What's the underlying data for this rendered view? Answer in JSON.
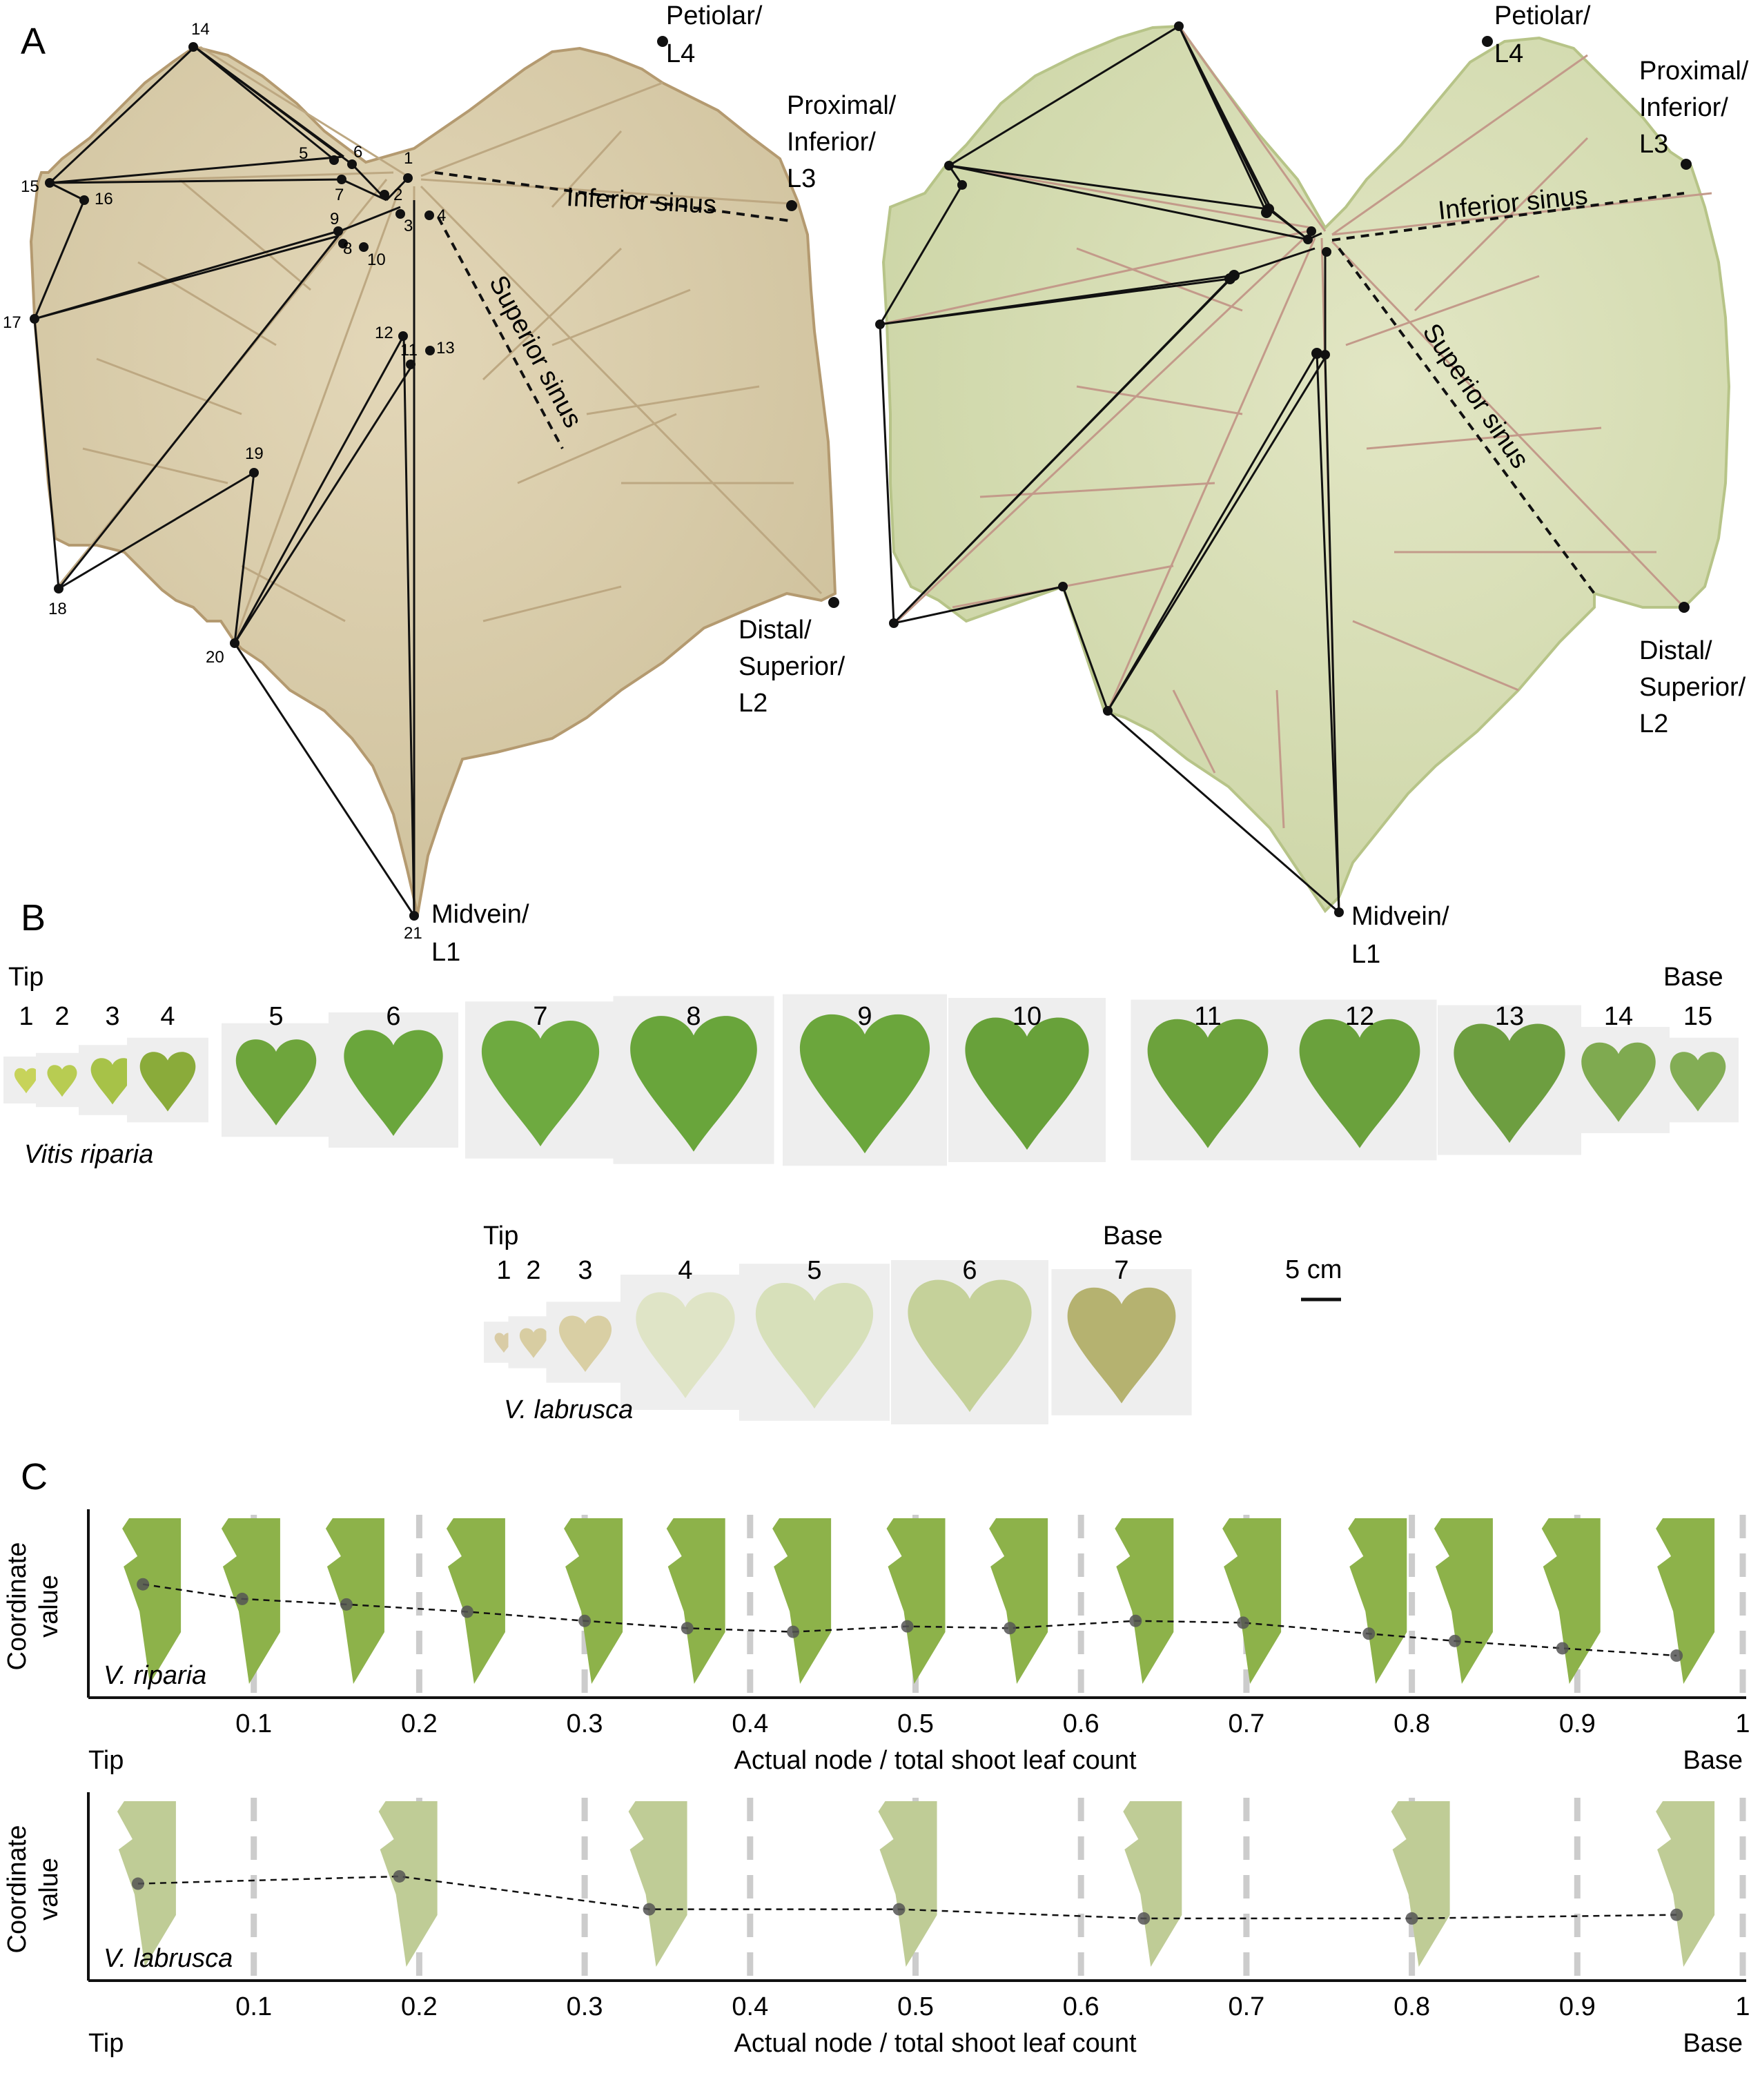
{
  "panel_a": {
    "letter": "A",
    "left_leaf": {
      "landmark_numbers": [
        "1",
        "2",
        "3",
        "4",
        "5",
        "6",
        "7",
        "8",
        "9",
        "10",
        "11",
        "12",
        "13",
        "14",
        "15",
        "16",
        "17",
        "18",
        "19",
        "20",
        "21"
      ],
      "vein_labels": {
        "petiolar": [
          "Petiolar/",
          "L4"
        ],
        "proximal": [
          "Proximal/",
          "Inferior/",
          "L3"
        ],
        "distal": [
          "Distal/",
          "Superior/",
          "L2"
        ],
        "midvein": [
          "Midvein/",
          "L1"
        ]
      },
      "inferior_sinus": "Inferior sinus",
      "superior_sinus": "Superior sinus"
    },
    "right_leaf": {
      "vein_labels": {
        "petiolar": [
          "Petiolar/",
          "L4"
        ],
        "proximal": [
          "Proximal/",
          "Inferior/",
          "L3"
        ],
        "distal": [
          "Distal/",
          "Superior/",
          "L2"
        ],
        "midvein": [
          "Midvein/",
          "L1"
        ]
      },
      "inferior_sinus": "Inferior sinus",
      "superior_sinus": "Superior sinus"
    }
  },
  "panel_b": {
    "letter": "B",
    "riparia": {
      "tip_label": "Tip",
      "base_label": "Base",
      "species": "Vitis riparia",
      "nodes": [
        "1",
        "2",
        "3",
        "4",
        "5",
        "6",
        "7",
        "8",
        "9",
        "10",
        "11",
        "12",
        "13",
        "14",
        "15"
      ]
    },
    "labrusca": {
      "tip_label": "Tip",
      "base_label": "Base",
      "species": "V. labrusca",
      "nodes": [
        "1",
        "2",
        "3",
        "4",
        "5",
        "6",
        "7"
      ]
    },
    "scale_bar": "5 cm"
  },
  "panel_c": {
    "letter": "C",
    "colors": {
      "riparia": "#8db24a",
      "labrusca": "#bfcc96",
      "dashed_grid": "#cccccc",
      "point": "#555555"
    },
    "chart_data": [
      {
        "type": "scatter",
        "title": "",
        "species_label": "V. riparia",
        "ylabel": "Coordinate value",
        "xlabel": "Actual node / total shoot leaf count",
        "x_start_label": "Tip",
        "x_end_label": "Base",
        "xlim": [
          0,
          1
        ],
        "xticks": [
          "0.1",
          "0.2",
          "0.3",
          "0.4",
          "0.5",
          "0.6",
          "0.7",
          "0.8",
          "0.9",
          "1"
        ],
        "grid": "vertical dashed",
        "x": [
          0.033,
          0.093,
          0.156,
          0.229,
          0.3,
          0.362,
          0.426,
          0.495,
          0.557,
          0.633,
          0.698,
          0.774,
          0.826,
          0.891,
          0.96
        ],
        "y": [
          0.62,
          0.54,
          0.51,
          0.47,
          0.42,
          0.38,
          0.36,
          0.39,
          0.38,
          0.42,
          0.41,
          0.35,
          0.31,
          0.27,
          0.23
        ]
      },
      {
        "type": "scatter",
        "title": "",
        "species_label": "V. labrusca",
        "ylabel": "Coordinate value",
        "xlabel": "Actual node / total shoot leaf count",
        "x_start_label": "Tip",
        "x_end_label": "Base",
        "xlim": [
          0,
          1
        ],
        "xticks": [
          "0.1",
          "0.2",
          "0.3",
          "0.4",
          "0.5",
          "0.6",
          "0.7",
          "0.8",
          "0.9",
          "1"
        ],
        "grid": "vertical dashed",
        "x": [
          0.03,
          0.188,
          0.339,
          0.49,
          0.638,
          0.8,
          0.96
        ],
        "y": [
          0.53,
          0.57,
          0.39,
          0.39,
          0.34,
          0.34,
          0.36
        ]
      }
    ]
  }
}
